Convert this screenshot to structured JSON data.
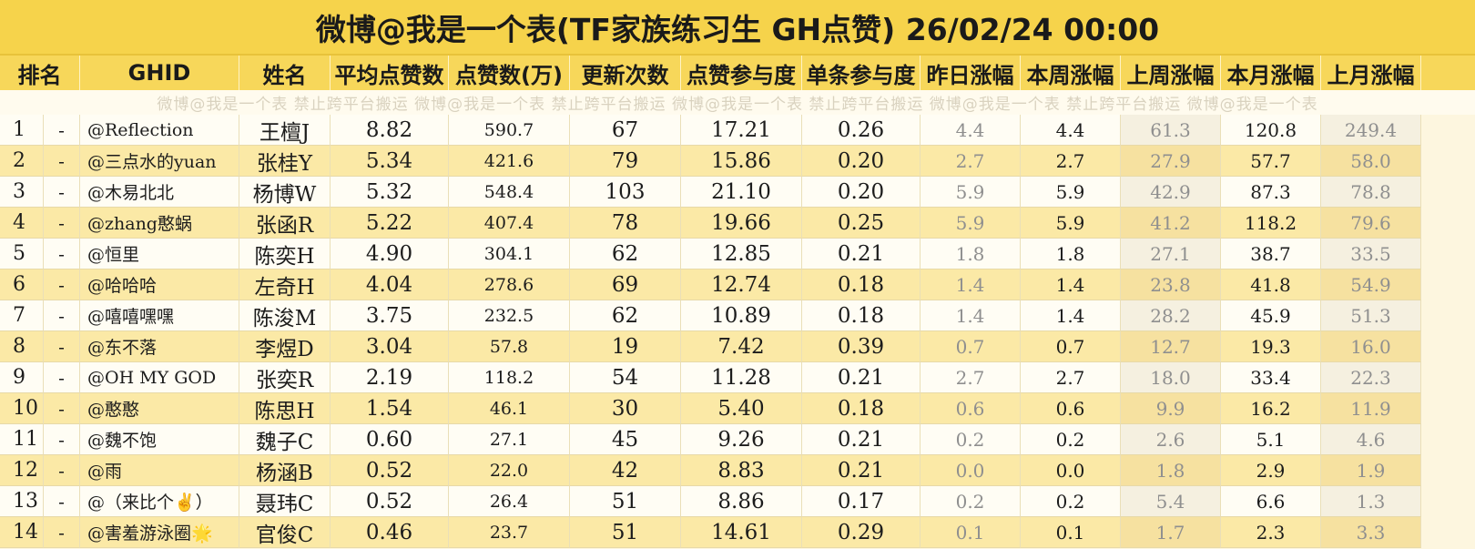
{
  "title": "微博@我是一个表(TF家族练习生 GH点赞)  26/02/24 00:00",
  "watermark": "微博@我是一个表   禁止跨平台搬运   微博@我是一个表   禁止跨平台搬运   微博@我是一个表   禁止跨平台搬运   微博@我是一个表   禁止跨平台搬运   微博@我是一个表",
  "headers": [
    "排名",
    "",
    "GHID",
    "姓名",
    "平均点赞数",
    "点赞数(万)",
    "更新次数",
    "点赞参与度",
    "单条参与度",
    "昨日涨幅",
    "本周涨幅",
    "上周涨幅",
    "本月涨幅",
    "上月涨幅"
  ],
  "rows": [
    [
      "1",
      "-",
      "@Reflection",
      "王檀J",
      "8.82",
      "590.7",
      "67",
      "17.21",
      "0.26",
      "4.4",
      "4.4",
      "61.3",
      "120.8",
      "249.4"
    ],
    [
      "2",
      "-",
      "@三点水的yuan",
      "张桂Y",
      "5.34",
      "421.6",
      "79",
      "15.86",
      "0.20",
      "2.7",
      "2.7",
      "27.9",
      "57.7",
      "58.0"
    ],
    [
      "3",
      "-",
      "@木易北北",
      "杨博W",
      "5.32",
      "548.4",
      "103",
      "21.10",
      "0.20",
      "5.9",
      "5.9",
      "42.9",
      "87.3",
      "78.8"
    ],
    [
      "4",
      "-",
      "@zhang憨蜗",
      "张函R",
      "5.22",
      "407.4",
      "78",
      "19.66",
      "0.25",
      "5.9",
      "5.9",
      "41.2",
      "118.2",
      "79.6"
    ],
    [
      "5",
      "-",
      "@恒里",
      "陈奕H",
      "4.90",
      "304.1",
      "62",
      "12.85",
      "0.21",
      "1.8",
      "1.8",
      "27.1",
      "38.7",
      "33.5"
    ],
    [
      "6",
      "-",
      "@哈哈哈",
      "左奇H",
      "4.04",
      "278.6",
      "69",
      "12.74",
      "0.18",
      "1.4",
      "1.4",
      "23.8",
      "41.8",
      "54.9"
    ],
    [
      "7",
      "-",
      "@嘻嘻嘿嘿",
      "陈浚M",
      "3.75",
      "232.5",
      "62",
      "10.89",
      "0.18",
      "1.4",
      "1.4",
      "28.2",
      "45.9",
      "51.3"
    ],
    [
      "8",
      "-",
      "@东不落",
      "李煜D",
      "3.04",
      "57.8",
      "19",
      "7.42",
      "0.39",
      "0.7",
      "0.7",
      "12.7",
      "19.3",
      "16.0"
    ],
    [
      "9",
      "-",
      "@OH MY GOD",
      "张奕R",
      "2.19",
      "118.2",
      "54",
      "11.28",
      "0.21",
      "2.7",
      "2.7",
      "18.0",
      "33.4",
      "22.3"
    ],
    [
      "10",
      "-",
      "@憨憨",
      "陈思H",
      "1.54",
      "46.1",
      "30",
      "5.40",
      "0.18",
      "0.6",
      "0.6",
      "9.9",
      "16.2",
      "11.9"
    ],
    [
      "11",
      "-",
      "@魏不饱",
      "魏子C",
      "0.60",
      "27.1",
      "45",
      "9.26",
      "0.21",
      "0.2",
      "0.2",
      "2.6",
      "5.1",
      "4.6"
    ],
    [
      "12",
      "-",
      "@雨",
      "杨涵B",
      "0.52",
      "22.0",
      "42",
      "8.83",
      "0.21",
      "0.0",
      "0.0",
      "1.8",
      "2.9",
      "1.9"
    ],
    [
      "13",
      "-",
      "@（来比个✌️）",
      "聂玮C",
      "0.52",
      "26.4",
      "51",
      "8.86",
      "0.17",
      "0.2",
      "0.2",
      "5.4",
      "6.6",
      "1.3"
    ],
    [
      "14",
      "-",
      "@害羞游泳圈🌟",
      "官俊C",
      "0.46",
      "23.7",
      "51",
      "14.61",
      "0.29",
      "0.1",
      "0.1",
      "1.7",
      "2.3",
      "3.3"
    ]
  ]
}
